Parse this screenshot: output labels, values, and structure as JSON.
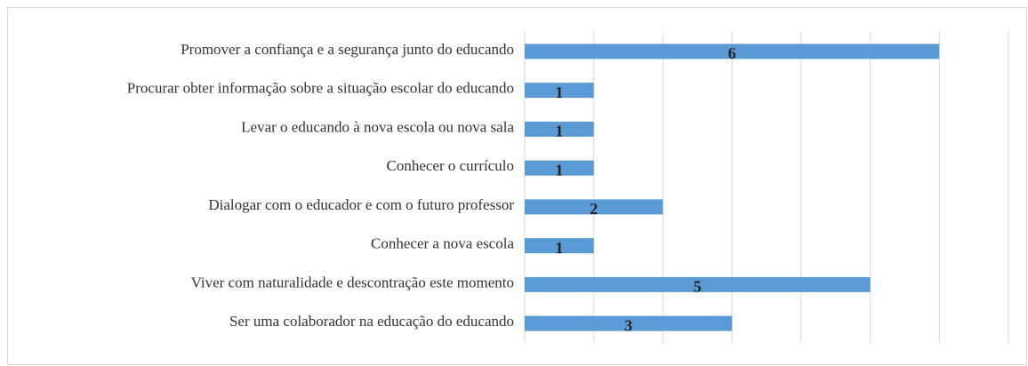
{
  "chart_data": {
    "type": "barh",
    "categories": [
      "Promover a confiança e a segurança junto do educando",
      "Procurar obter informação sobre a situação escolar do educando",
      "Levar o educando à nova escola ou nova sala",
      "Conhecer o currículo",
      "Dialogar com o educador e com o futuro professor",
      "Conhecer a nova escola",
      "Viver com naturalidade e descontração este momento",
      "Ser uma colaborador na educação do educando"
    ],
    "values": [
      6,
      1,
      1,
      1,
      2,
      1,
      5,
      3
    ],
    "color": "#5b9bd5",
    "xlim": [
      0,
      7
    ],
    "xticks": [
      0,
      1,
      2,
      3,
      4,
      5,
      6,
      7
    ],
    "grid": true
  }
}
